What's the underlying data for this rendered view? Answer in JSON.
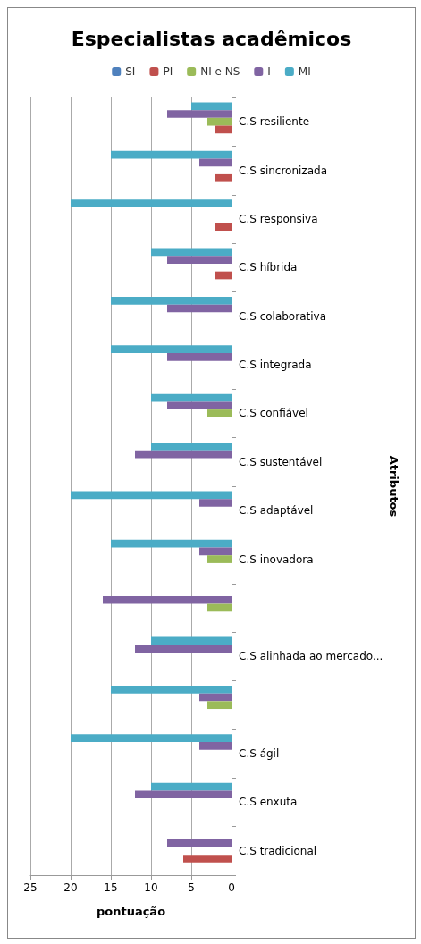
{
  "chart_data": {
    "type": "bar",
    "orientation": "horizontal",
    "title": "Especialistas acadêmicos",
    "xlabel": "pontuação",
    "ylabel": "Atributos",
    "categories": [
      "C.S resiliente",
      "C.S sincronizada",
      "C.S responsiva",
      "C.S híbrida",
      "C.S colaborativa",
      "C.S integrada",
      "C.S confiável",
      "C.S sustentável",
      "C.S adaptável",
      "C.S inovadora",
      null,
      "C.S alinhada ao mercado...",
      null,
      "C.S ágil",
      "C.S enxuta",
      "C.S tradicional"
    ],
    "series": [
      {
        "name": "SI",
        "color": "#4f81bd",
        "values": [
          null,
          null,
          null,
          null,
          null,
          null,
          null,
          null,
          null,
          null,
          null,
          null,
          null,
          null,
          null,
          null
        ]
      },
      {
        "name": "PI",
        "color": "#c0504d",
        "values": [
          2,
          2,
          2,
          2,
          null,
          null,
          null,
          null,
          null,
          null,
          null,
          null,
          null,
          null,
          null,
          6
        ]
      },
      {
        "name": "NI e NS",
        "color": "#9bbb59",
        "values": [
          3,
          null,
          null,
          null,
          null,
          null,
          3,
          null,
          null,
          3,
          3,
          null,
          3,
          null,
          null,
          null
        ]
      },
      {
        "name": "I",
        "color": "#8064a2",
        "values": [
          8,
          4,
          null,
          8,
          8,
          8,
          8,
          12,
          4,
          4,
          16,
          12,
          4,
          4,
          12,
          8
        ]
      },
      {
        "name": "MI",
        "color": "#4bacc6",
        "values": [
          5,
          15,
          20,
          10,
          15,
          15,
          10,
          10,
          20,
          15,
          null,
          10,
          15,
          20,
          10,
          null
        ]
      }
    ],
    "xlim": [
      25,
      0
    ],
    "xticks": [
      25,
      20,
      15,
      10,
      5,
      0
    ],
    "grid": "x",
    "legend": "top"
  }
}
